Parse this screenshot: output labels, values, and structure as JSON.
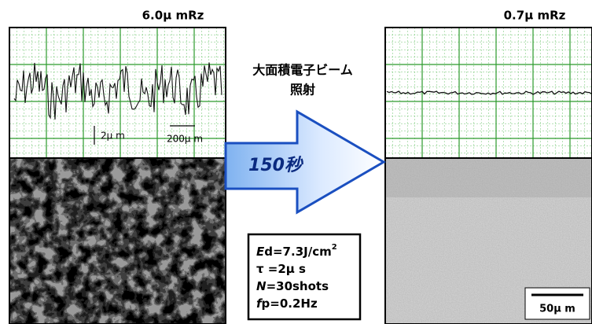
{
  "before": {
    "roughness": "6.0μ mRz",
    "scale_height": "2μ m",
    "scale_width": "200μ m"
  },
  "after": {
    "roughness": "0.7μ mRz",
    "scale_bar": "50μ m"
  },
  "process": {
    "name_line1": "大面積電子ビーム",
    "name_line2": "照射",
    "time": "150秒"
  },
  "conditions": [
    {
      "italic": "E",
      "text": "d=7.3J/cm",
      "sup": "2"
    },
    {
      "italic": "",
      "text": "τ =2μ s",
      "sup": ""
    },
    {
      "italic": "N",
      "text": "=30shots",
      "sup": ""
    },
    {
      "italic": "f",
      "text": "p=0.2Hz",
      "sup": ""
    }
  ]
}
